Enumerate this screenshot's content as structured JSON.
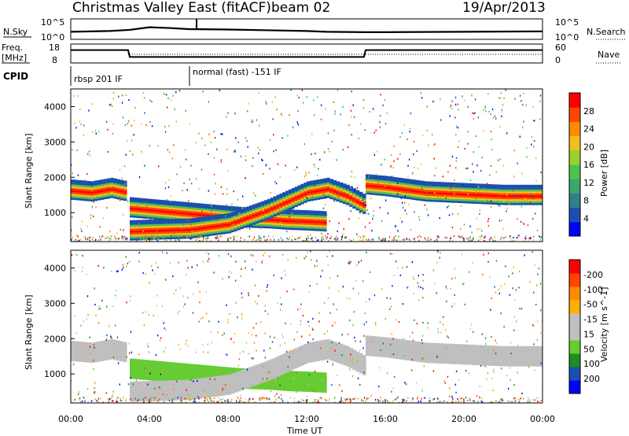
{
  "header": {
    "station": "Christmas Valley East (fitACF)",
    "beam": "beam 02",
    "date": "19/Apr/2013"
  },
  "strip": {
    "nsky_label": "N.Sky",
    "nsky_ticks": [
      "10^5",
      "10^0"
    ],
    "nsearch_ticks": [
      "10^5",
      "10^0"
    ],
    "nsearch_label": "N.Search",
    "freq_label_1": "Freq.",
    "freq_label_2": "[MHz]",
    "freq_ticks": [
      "18",
      "8"
    ],
    "nave_ticks": [
      "60",
      "0"
    ],
    "nave_label": "Nave",
    "cpid_label": "CPID",
    "cpid_1": "rbsp 201 IF",
    "cpid_2": "normal (fast) -151 IF"
  },
  "colors": {
    "power_scale": [
      "#0000ff",
      "#1a4fb0",
      "#2f7f8c",
      "#3aa66d",
      "#4ec24f",
      "#9ad12c",
      "#f0c020",
      "#ff8c00",
      "#ff4500",
      "#ff0000"
    ],
    "velocity_scale": [
      "#ff0000",
      "#ff4500",
      "#ff8c00",
      "#ffb000",
      "#bfbfbf",
      "#bfbfbf",
      "#66cc33",
      "#228b22",
      "#1a4fb0",
      "#0000ff"
    ]
  },
  "chart_data": [
    {
      "type": "line",
      "panel": "N.Sky / N.Search",
      "ylabel": "N.Sky",
      "ylabel_right": "N.Search",
      "x_range": [
        "00:00",
        "24:00"
      ],
      "yticks_left": [
        "10^5",
        "10^0"
      ],
      "yticks_right": [
        "10^5",
        "10^0"
      ],
      "series": [
        {
          "name": "N.Sky",
          "x": [
            "00:00",
            "02:00",
            "03:00",
            "04:00",
            "05:00",
            "06:00",
            "08:00",
            "10:00",
            "12:00",
            "13:00",
            "15:00",
            "16:00",
            "20:00",
            "24:00"
          ],
          "y": [
            1.8,
            2.0,
            2.3,
            3.0,
            2.8,
            2.5,
            2.4,
            2.2,
            2.0,
            1.8,
            1.7,
            1.7,
            1.8,
            1.9
          ]
        }
      ]
    },
    {
      "type": "line",
      "panel": "Freq / Nave",
      "ylabel": "Freq. [MHz]",
      "ylabel_right": "Nave",
      "yticks_left": [
        "18",
        "8"
      ],
      "yticks_right": [
        "60",
        "0"
      ],
      "series": [
        {
          "name": "Freq.",
          "x": [
            "00:00",
            "02:55",
            "03:00",
            "14:55",
            "15:00",
            "24:00"
          ],
          "y": [
            15,
            15,
            11,
            11,
            15,
            15
          ]
        }
      ]
    },
    {
      "type": "heatmap",
      "title": "Power",
      "ylabel": "Slant Range [km]",
      "colorbar_label": "Power [dB]",
      "colorbar_ticks": [
        "4",
        "8",
        "12",
        "16",
        "20",
        "24",
        "28"
      ],
      "yticks": [
        "1000",
        "2000",
        "3000",
        "4000"
      ],
      "ylim": [
        180,
        4500
      ],
      "series": [
        {
          "x": [
            "00:00",
            "01:00",
            "02:00",
            "02:50"
          ],
          "y": [
            1650,
            1600,
            1700,
            1600
          ]
        },
        {
          "x": [
            "03:00",
            "04:00",
            "05:00",
            "06:00",
            "07:00",
            "08:00",
            "09:00",
            "10:00",
            "11:00",
            "12:00",
            "13:00"
          ],
          "y": [
            1150,
            1100,
            1050,
            1000,
            950,
            900,
            860,
            840,
            800,
            780,
            750
          ]
        },
        {
          "x": [
            "03:00",
            "06:00",
            "08:00",
            "10:00",
            "12:00",
            "13:00",
            "14:00",
            "15:00"
          ],
          "y": [
            500,
            550,
            700,
            1100,
            1600,
            1700,
            1500,
            1200
          ]
        },
        {
          "x": [
            "15:00",
            "16:00",
            "18:00",
            "20:00",
            "22:00",
            "24:00"
          ],
          "y": [
            1800,
            1750,
            1600,
            1550,
            1500,
            1500
          ]
        }
      ]
    },
    {
      "type": "heatmap",
      "title": "Velocity",
      "ylabel": "Slant Range [km]",
      "xlabel": "Time UT",
      "colorbar_label": "Velocity [m s^-1]",
      "colorbar_ticks": [
        "200",
        "100",
        "50",
        "15",
        "-15",
        "-50",
        "-100",
        "-200"
      ],
      "yticks": [
        "1000",
        "2000",
        "3000",
        "4000"
      ],
      "xticks": [
        "00:00",
        "04:00",
        "08:00",
        "12:00",
        "16:00",
        "20:00",
        "00:00"
      ],
      "ylim": [
        180,
        4500
      ]
    }
  ]
}
